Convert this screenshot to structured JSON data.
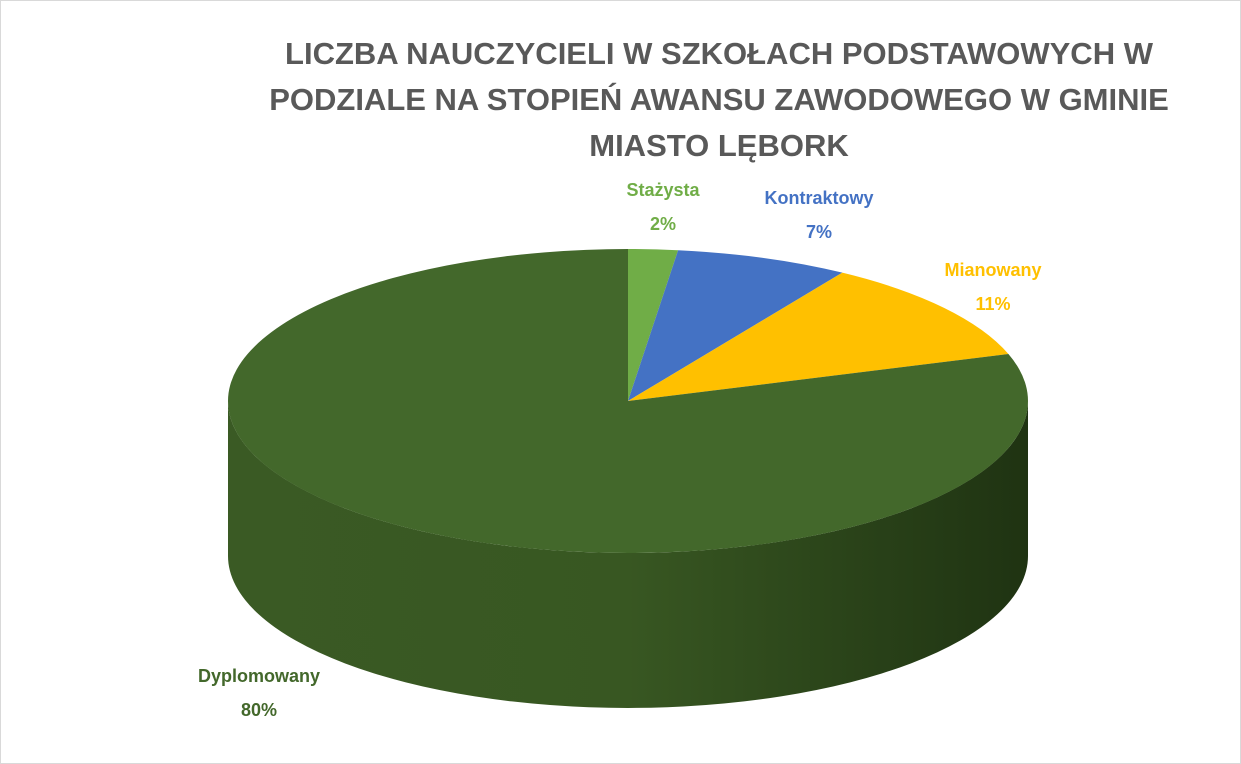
{
  "chart_data": {
    "type": "pie",
    "title": "LICZBA NAUCZYCIELI W SZKOŁACH PODSTAWOWYCH W PODZIALE NA STOPIEŃ AWANSU ZAWODOWEGO W GMINIE MIASTO LĘBORK",
    "categories": [
      "Stażysta",
      "Kontraktowy",
      "Mianowany",
      "Dyplomowany"
    ],
    "values": [
      2,
      7,
      11,
      80
    ],
    "value_labels": [
      "2%",
      "7%",
      "11%",
      "80%"
    ],
    "colors": [
      "#70ad47",
      "#4472c4",
      "#ffc000",
      "#43682b"
    ]
  }
}
